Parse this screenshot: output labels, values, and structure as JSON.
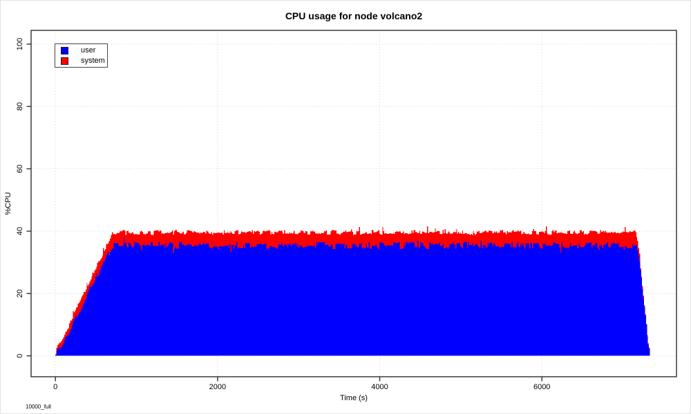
{
  "title": "CPU usage for node volcano2",
  "note": "10000_full",
  "legend": {
    "items": [
      {
        "label": "user",
        "color": "#0000ff"
      },
      {
        "label": "system",
        "color": "#ff0000"
      }
    ]
  },
  "chart_data": {
    "type": "area",
    "stacked": true,
    "title": "CPU usage for node volcano2",
    "xlabel": "Time (s)",
    "ylabel": "%CPU",
    "data_xlim": [
      0,
      7336
    ],
    "axis_xlim": [
      -300,
      7660
    ],
    "axis_ylim": [
      -6.7,
      104.4
    ],
    "xticks": [
      0,
      2000,
      4000,
      6000
    ],
    "yticks": [
      0,
      20,
      40,
      60,
      80,
      100
    ],
    "grid": true,
    "grid_color": "#d3d3d3",
    "frame_color": "#3a3a3a",
    "legend_position": "top-left",
    "series": [
      {
        "name": "user",
        "color": "#0000ff"
      },
      {
        "name": "system",
        "color": "#ff0000"
      }
    ],
    "envelope_comment": "piecewise-linear anchors [time_s, user_pct, user_plus_system_pct] read from the plot",
    "envelope": [
      [
        0,
        0.3,
        0.5
      ],
      [
        12,
        1.8,
        2.6
      ],
      [
        30,
        2.8,
        3.9
      ],
      [
        55,
        2.4,
        4.1
      ],
      [
        700,
        35.4,
        39.6
      ],
      [
        7160,
        35.4,
        39.6
      ],
      [
        7205,
        28.5,
        30.6
      ],
      [
        7265,
        13.5,
        14.6
      ],
      [
        7312,
        2.8,
        3.4
      ],
      [
        7336,
        0.7,
        1.0
      ]
    ],
    "noise": {
      "seed": 1337,
      "step_s": 12,
      "hold_p": 0.42,
      "user_amp": 1.1,
      "total_amp": 0.7,
      "jitter": 0.4,
      "user_spike_p": 0.03,
      "user_spike_amp": 2.4,
      "user_dip_p": 0.03,
      "user_dip_amp": 2.0,
      "total_spike_p": 0.05,
      "total_spike_amp": 2.4,
      "min_gap_abs": 0.35,
      "min_gap_frac": 0.3
    }
  }
}
